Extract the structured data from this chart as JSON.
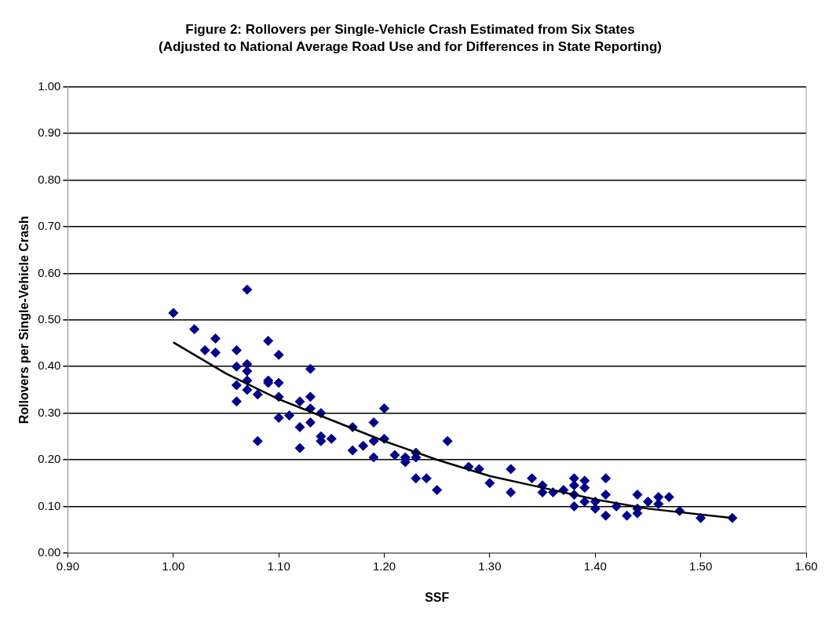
{
  "chart_data": {
    "type": "scatter",
    "title": "Figure 2: Rollovers per Single-Vehicle Crash Estimated from Six States",
    "subtitle": "(Adjusted to National Average Road Use and for Differences in State Reporting)",
    "xlabel": "SSF",
    "ylabel": "Rollovers per Single-Vehicle Crash",
    "xlim": [
      0.9,
      1.6
    ],
    "xticks": [
      {
        "value": 0.9,
        "label": "0.90"
      },
      {
        "value": 1.0,
        "label": "1.00"
      },
      {
        "value": 1.1,
        "label": "1.10"
      },
      {
        "value": 1.2,
        "label": "1.20"
      },
      {
        "value": 1.3,
        "label": "1.30"
      },
      {
        "value": 1.4,
        "label": "1.40"
      },
      {
        "value": 1.5,
        "label": "1.50"
      },
      {
        "value": 1.6,
        "label": "1.60"
      }
    ],
    "ylim": [
      0,
      1
    ],
    "yticks": [
      {
        "value": 0,
        "label": "0.00"
      },
      {
        "value": 0.1,
        "label": "0.10"
      },
      {
        "value": 0.2,
        "label": "0.20"
      },
      {
        "value": 0.3,
        "label": "0.30"
      },
      {
        "value": 0.4,
        "label": "0.40"
      },
      {
        "value": 0.5,
        "label": "0.50"
      },
      {
        "value": 0.6,
        "label": "0.60"
      },
      {
        "value": 0.7,
        "label": "0.70"
      },
      {
        "value": 0.8,
        "label": "0.80"
      },
      {
        "value": 0.9,
        "label": "0.90"
      },
      {
        "value": 1.0,
        "label": "1.00"
      }
    ],
    "grid": "y",
    "legend": false,
    "marker": "diamond",
    "series": [
      {
        "type": "scatter",
        "color": "#00008b",
        "x": [
          1.0,
          1.02,
          1.03,
          1.04,
          1.04,
          1.06,
          1.06,
          1.06,
          1.06,
          1.07,
          1.07,
          1.07,
          1.07,
          1.07,
          1.08,
          1.08,
          1.09,
          1.09,
          1.09,
          1.1,
          1.1,
          1.1,
          1.1,
          1.11,
          1.12,
          1.12,
          1.12,
          1.13,
          1.13,
          1.13,
          1.13,
          1.14,
          1.14,
          1.14,
          1.15,
          1.17,
          1.17,
          1.18,
          1.19,
          1.19,
          1.19,
          1.2,
          1.2,
          1.21,
          1.22,
          1.22,
          1.23,
          1.23,
          1.23,
          1.24,
          1.25,
          1.26,
          1.28,
          1.29,
          1.3,
          1.32,
          1.32,
          1.34,
          1.35,
          1.35,
          1.36,
          1.37,
          1.38,
          1.38,
          1.38,
          1.38,
          1.39,
          1.39,
          1.39,
          1.4,
          1.4,
          1.41,
          1.41,
          1.41,
          1.42,
          1.43,
          1.44,
          1.44,
          1.44,
          1.45,
          1.46,
          1.46,
          1.47,
          1.48,
          1.5,
          1.53
        ],
        "values": [
          0.515,
          0.48,
          0.435,
          0.46,
          0.43,
          0.435,
          0.4,
          0.36,
          0.325,
          0.565,
          0.405,
          0.39,
          0.37,
          0.35,
          0.34,
          0.24,
          0.455,
          0.37,
          0.365,
          0.425,
          0.365,
          0.335,
          0.29,
          0.295,
          0.325,
          0.27,
          0.225,
          0.395,
          0.335,
          0.31,
          0.28,
          0.3,
          0.25,
          0.24,
          0.245,
          0.27,
          0.22,
          0.23,
          0.28,
          0.24,
          0.205,
          0.31,
          0.245,
          0.21,
          0.205,
          0.195,
          0.215,
          0.205,
          0.16,
          0.16,
          0.135,
          0.24,
          0.185,
          0.18,
          0.15,
          0.18,
          0.13,
          0.16,
          0.145,
          0.13,
          0.13,
          0.135,
          0.16,
          0.145,
          0.125,
          0.1,
          0.155,
          0.14,
          0.11,
          0.11,
          0.095,
          0.16,
          0.125,
          0.08,
          0.1,
          0.08,
          0.125,
          0.095,
          0.085,
          0.11,
          0.12,
          0.105,
          0.12,
          0.09,
          0.075,
          0.075
        ]
      },
      {
        "type": "line",
        "color": "#000000",
        "marker": "none",
        "x": [
          1.0,
          1.05,
          1.1,
          1.15,
          1.2,
          1.25,
          1.3,
          1.35,
          1.4,
          1.45,
          1.53
        ],
        "values": [
          0.452,
          0.385,
          0.33,
          0.285,
          0.24,
          0.2,
          0.165,
          0.14,
          0.115,
          0.095,
          0.075
        ]
      }
    ]
  }
}
